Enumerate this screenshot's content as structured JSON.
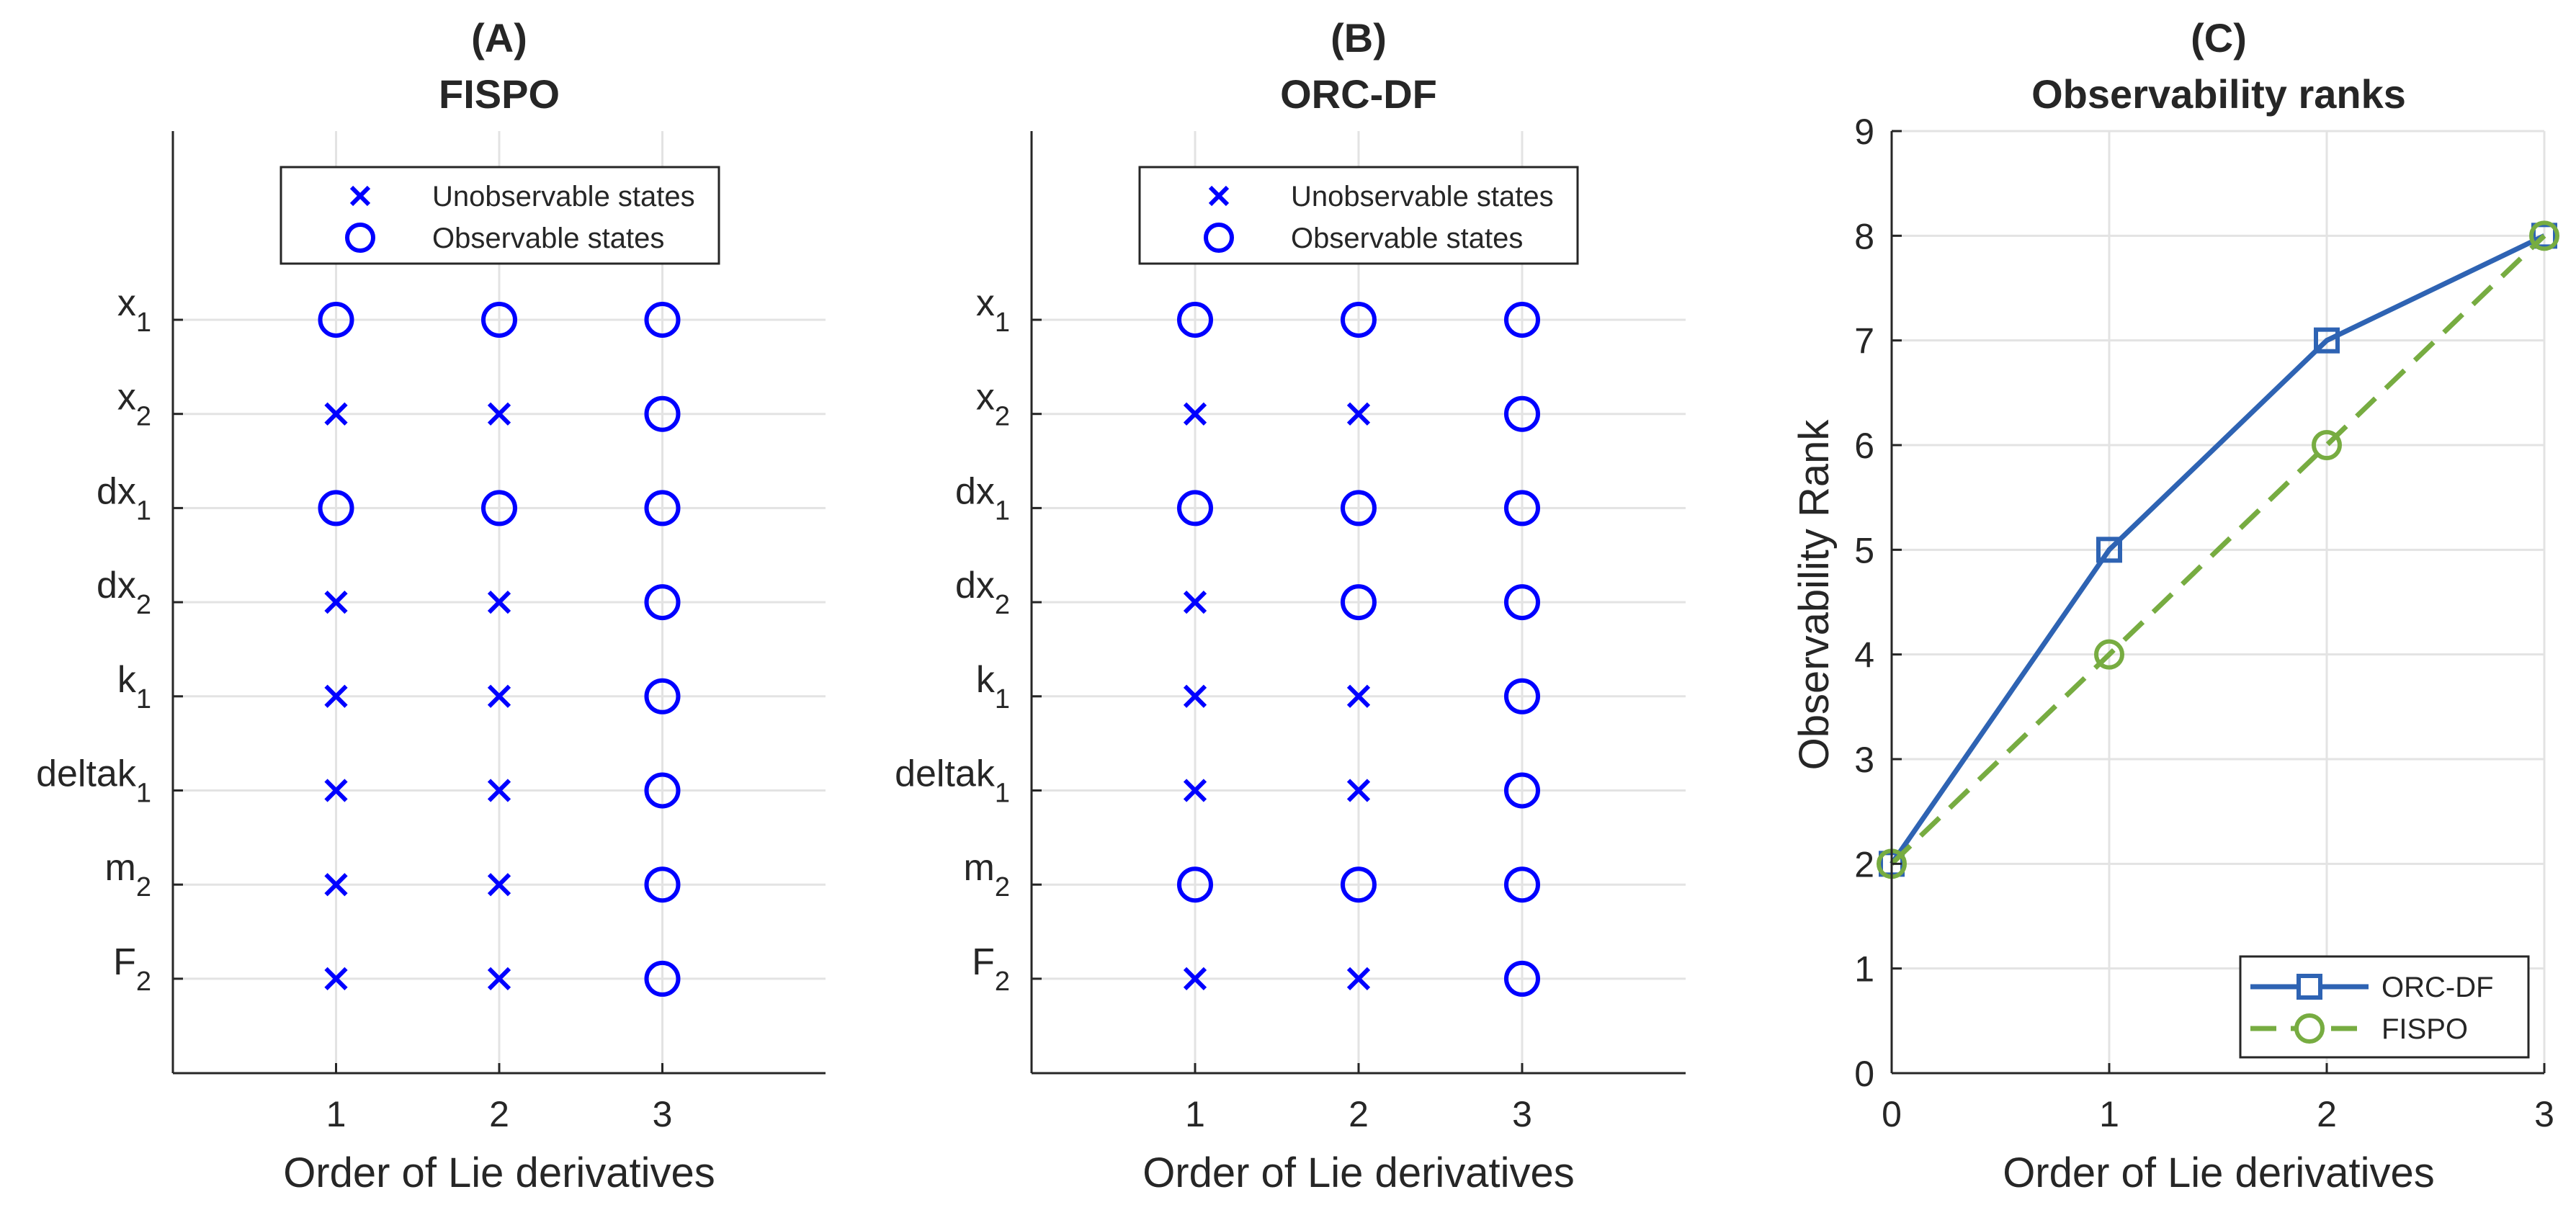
{
  "chart_data": [
    {
      "type": "scatter",
      "panel": "(A)",
      "title": "FISPO",
      "xlabel": "Order of Lie derivatives",
      "ylabel": "",
      "x": [
        1,
        2,
        3
      ],
      "xlim": [
        0,
        4
      ],
      "states": [
        {
          "base": "x",
          "sub": "1"
        },
        {
          "base": "x",
          "sub": "2"
        },
        {
          "base": "dx",
          "sub": "1"
        },
        {
          "base": "dx",
          "sub": "2"
        },
        {
          "base": "k",
          "sub": "1"
        },
        {
          "base": "deltak",
          "sub": "1"
        },
        {
          "base": "m",
          "sub": "2"
        },
        {
          "base": "F",
          "sub": "2"
        }
      ],
      "observable": [
        [
          true,
          true,
          true
        ],
        [
          false,
          false,
          true
        ],
        [
          true,
          true,
          true
        ],
        [
          false,
          false,
          true
        ],
        [
          false,
          false,
          true
        ],
        [
          false,
          false,
          true
        ],
        [
          false,
          false,
          true
        ],
        [
          false,
          false,
          true
        ]
      ],
      "legend": {
        "unobservable": "Unobservable states",
        "observable": "Observable states",
        "location": "top"
      },
      "color": "#0000ff"
    },
    {
      "type": "scatter",
      "panel": "(B)",
      "title": "ORC-DF",
      "xlabel": "Order of Lie derivatives",
      "ylabel": "",
      "x": [
        1,
        2,
        3
      ],
      "xlim": [
        0,
        4
      ],
      "states": [
        {
          "base": "x",
          "sub": "1"
        },
        {
          "base": "x",
          "sub": "2"
        },
        {
          "base": "dx",
          "sub": "1"
        },
        {
          "base": "dx",
          "sub": "2"
        },
        {
          "base": "k",
          "sub": "1"
        },
        {
          "base": "deltak",
          "sub": "1"
        },
        {
          "base": "m",
          "sub": "2"
        },
        {
          "base": "F",
          "sub": "2"
        }
      ],
      "observable": [
        [
          true,
          true,
          true
        ],
        [
          false,
          false,
          true
        ],
        [
          true,
          true,
          true
        ],
        [
          false,
          true,
          true
        ],
        [
          false,
          false,
          true
        ],
        [
          false,
          false,
          true
        ],
        [
          true,
          true,
          true
        ],
        [
          false,
          false,
          true
        ]
      ],
      "legend": {
        "unobservable": "Unobservable states",
        "observable": "Observable states",
        "location": "top"
      },
      "color": "#0000ff"
    },
    {
      "type": "line",
      "panel": "(C)",
      "title": "Observability ranks",
      "xlabel": "Order of Lie derivatives",
      "ylabel": "Observability Rank",
      "x": [
        0,
        1,
        2,
        3
      ],
      "xlim": [
        0,
        3
      ],
      "ylim": [
        0,
        9
      ],
      "xticks": [
        0,
        1,
        2,
        3
      ],
      "yticks": [
        0,
        1,
        2,
        3,
        4,
        5,
        6,
        7,
        8,
        9
      ],
      "series": [
        {
          "name": "ORC-DF",
          "values": [
            2,
            5,
            7,
            8
          ],
          "color": "#2e63b3",
          "marker": "square",
          "dash": "solid"
        },
        {
          "name": "FISPO",
          "values": [
            2,
            4,
            6,
            8
          ],
          "color": "#77ac41",
          "marker": "circle",
          "dash": "dashed"
        }
      ],
      "legend_location": "bottom-right"
    }
  ]
}
